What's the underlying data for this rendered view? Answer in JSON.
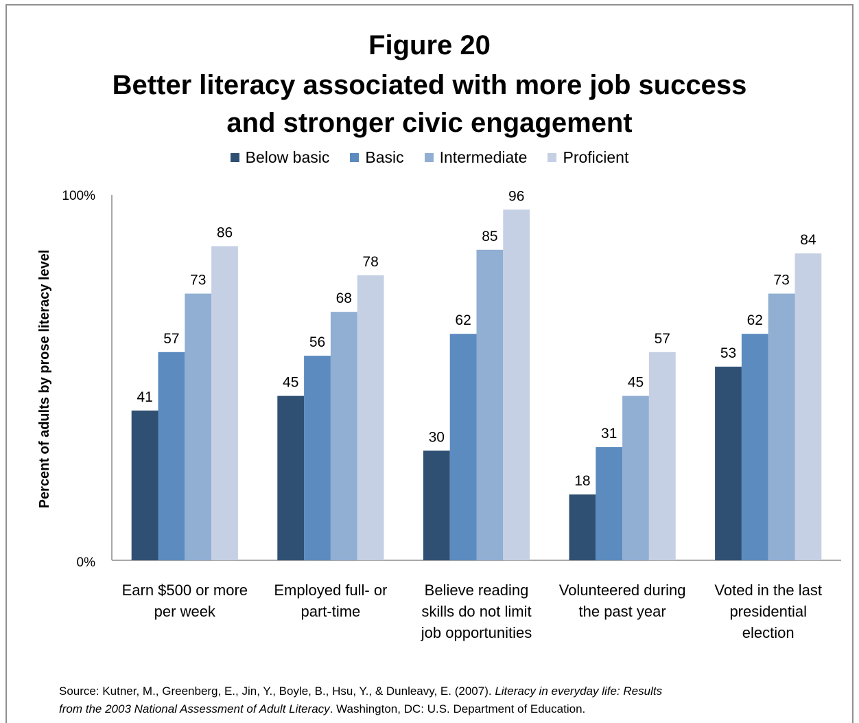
{
  "figure_label": "Figure 20",
  "title_line1": "Better literacy associated with more job success",
  "title_line2": "and stronger civic engagement",
  "source": {
    "prefix": "Source: Kutner, M., Greenberg, E., Jin, Y., Boyle, B., Hsu, Y., & Dunleavy, E. (2007). ",
    "italic_line1": "Literacy in everyday life: Results",
    "italic_line2": "from the 2003 National Assessment of Adult Literacy",
    "suffix": ". Washington, DC: U.S. Department of Education."
  },
  "chart_data": {
    "type": "bar",
    "ylabel": "Percent of adults by prose literacy level",
    "ylim": [
      0,
      100
    ],
    "y_ticks": [
      "0%",
      "100%"
    ],
    "legend_position": "top",
    "categories": [
      [
        "Earn $500 or more",
        "per week"
      ],
      [
        "Employed full- or",
        "part-time"
      ],
      [
        "Believe reading",
        "skills do not limit",
        "job opportunities"
      ],
      [
        "Volunteered during",
        "the past year"
      ],
      [
        "Voted in the last",
        "presidential",
        "election"
      ]
    ],
    "series": [
      {
        "name": "Below basic",
        "color": "#2f5073",
        "values": [
          41,
          45,
          30,
          18,
          53
        ]
      },
      {
        "name": "Basic",
        "color": "#5b8bbf",
        "values": [
          57,
          56,
          62,
          31,
          62
        ]
      },
      {
        "name": "Intermediate",
        "color": "#91aed3",
        "values": [
          73,
          68,
          85,
          45,
          73
        ]
      },
      {
        "name": "Proficient",
        "color": "#c5d0e4",
        "values": [
          86,
          78,
          96,
          57,
          84
        ]
      }
    ]
  }
}
